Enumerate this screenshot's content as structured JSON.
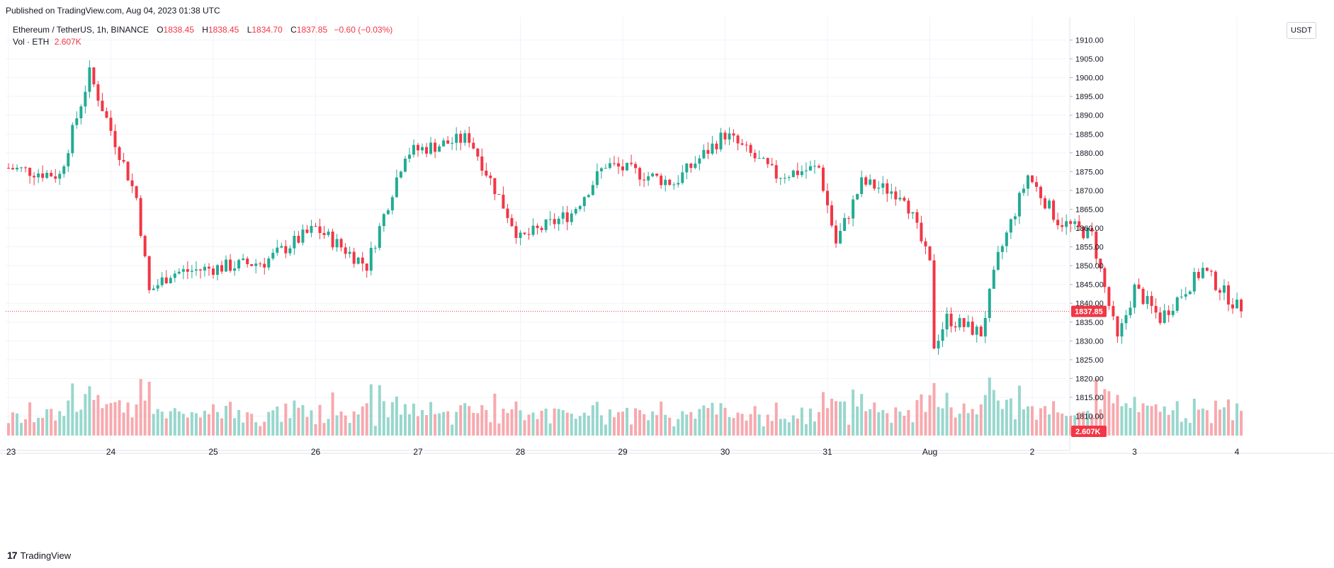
{
  "header": {
    "published_text": "Published on TradingView.com, Aug 04, 2023 01:38 UTC"
  },
  "legend": {
    "symbol": "Ethereum / TetherUS, 1h, BINANCE",
    "open_label": "O",
    "open_value": "1838.45",
    "high_label": "H",
    "high_value": "1838.45",
    "low_label": "L",
    "low_value": "1834.70",
    "close_label": "C",
    "close_value": "1837.85",
    "change": "−0.60 (−0.03%)",
    "volume_label": "Vol · ETH",
    "volume_value": "2.607K"
  },
  "price_axis": {
    "currency": "USDT",
    "last_price_label": "1837.85",
    "last_volume_label": "2.607K"
  },
  "footer": {
    "brand": "TradingView",
    "logo_glyph": "17"
  },
  "colors": {
    "up": "#22ab94",
    "down": "#f23645",
    "up_vol": "#98d7cd",
    "down_vol": "#f7a9ae",
    "grid": "#f0f3fa"
  },
  "chart_data": {
    "type": "candlestick",
    "interval": "1h",
    "x_tick_labels": [
      "23",
      "24",
      "25",
      "26",
      "27",
      "28",
      "29",
      "30",
      "31",
      "Aug",
      "2",
      "3",
      "4"
    ],
    "y_tick_labels": [
      "1910.00",
      "1905.00",
      "1900.00",
      "1895.00",
      "1890.00",
      "1885.00",
      "1880.00",
      "1875.00",
      "1870.00",
      "1865.00",
      "1860.00",
      "1855.00",
      "1850.00",
      "1845.00",
      "1840.00",
      "1835.00",
      "1830.00",
      "1825.00",
      "1820.00",
      "1815.00",
      "1810.00"
    ],
    "ylim": [
      1808,
      1911
    ],
    "last_price": 1837.85,
    "grid": true,
    "key_points": [
      {
        "time": "Jul 23",
        "price": 1876
      },
      {
        "time": "Jul 23 12:00",
        "price": 1874
      },
      {
        "time": "Jul 23 19:00",
        "price": 1901
      },
      {
        "time": "Jul 24 06:00",
        "price": 1868
      },
      {
        "time": "Jul 24 09:00",
        "price": 1843
      },
      {
        "time": "Jul 24 14:00",
        "price": 1848
      },
      {
        "time": "Jul 25 12:00",
        "price": 1851
      },
      {
        "time": "Jul 26 00:00",
        "price": 1860
      },
      {
        "time": "Jul 26 12:00",
        "price": 1850
      },
      {
        "time": "Jul 26 21:00",
        "price": 1880
      },
      {
        "time": "Jul 27 12:00",
        "price": 1884
      },
      {
        "time": "Jul 28 00:00",
        "price": 1857
      },
      {
        "time": "Jul 28 12:00",
        "price": 1864
      },
      {
        "time": "Jul 28 20:00",
        "price": 1877
      },
      {
        "time": "Jul 29 12:00",
        "price": 1872
      },
      {
        "time": "Jul 30 00:00",
        "price": 1885
      },
      {
        "time": "Jul 30 12:00",
        "price": 1874
      },
      {
        "time": "Jul 30 22:00",
        "price": 1876
      },
      {
        "time": "Jul 31 02:00",
        "price": 1856
      },
      {
        "time": "Jul 31 08:00",
        "price": 1872
      },
      {
        "time": "Jul 31 18:00",
        "price": 1869
      },
      {
        "time": "Aug 01 00:00",
        "price": 1850
      },
      {
        "time": "Aug 01 01:00",
        "price": 1829
      },
      {
        "time": "Aug 01 04:00",
        "price": 1836
      },
      {
        "time": "Aug 01 12:00",
        "price": 1832
      },
      {
        "time": "Aug 01 16:00",
        "price": 1852
      },
      {
        "time": "Aug 01 23:00",
        "price": 1874
      },
      {
        "time": "Aug 02 06:00",
        "price": 1862
      },
      {
        "time": "Aug 02 14:00",
        "price": 1858
      },
      {
        "time": "Aug 02 20:00",
        "price": 1830
      },
      {
        "time": "Aug 03 00:00",
        "price": 1844
      },
      {
        "time": "Aug 03 06:00",
        "price": 1836
      },
      {
        "time": "Aug 03 16:00",
        "price": 1849
      },
      {
        "time": "Aug 04 01:00",
        "price": 1837.85
      }
    ]
  }
}
